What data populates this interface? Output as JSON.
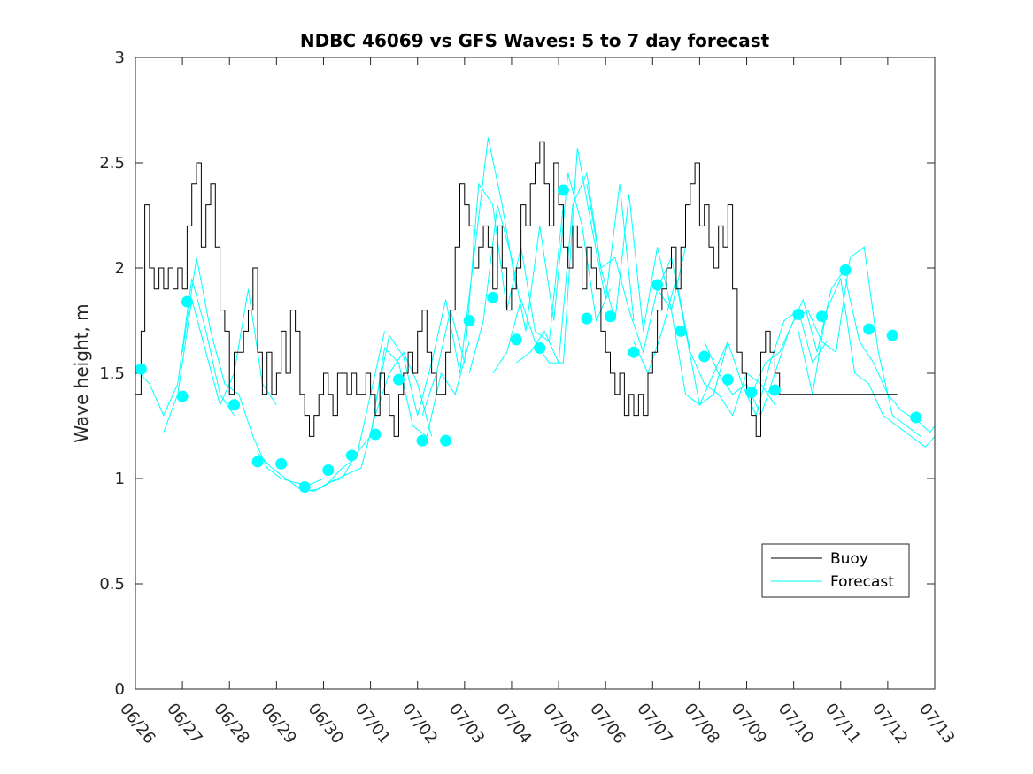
{
  "chart_data": {
    "type": "line",
    "title": "NDBC 46069 vs GFS Waves: 5 to 7 day forecast",
    "ylabel": "Wave height, m",
    "xlabel": "",
    "ylim": [
      0,
      3
    ],
    "yticks": [
      "0",
      "0.5",
      "1",
      "1.5",
      "2",
      "2.5",
      "3"
    ],
    "xticks": [
      "06/26",
      "06/27",
      "06/28",
      "06/29",
      "06/30",
      "07/01",
      "07/02",
      "07/03",
      "07/04",
      "07/05",
      "07/06",
      "07/07",
      "07/08",
      "07/09",
      "07/10",
      "07/11",
      "07/12",
      "07/13"
    ],
    "x_unit": "days since 06/26",
    "legend": {
      "position": "lower-right",
      "entries": [
        "Buoy",
        "Forecast"
      ]
    },
    "colors": {
      "buoy": "#000000",
      "forecast": "#00ffff",
      "axes": "#262626"
    },
    "buoy": {
      "name": "Buoy",
      "x": [
        0,
        0.12,
        0.2,
        0.3,
        0.4,
        0.5,
        0.6,
        0.7,
        0.8,
        0.9,
        1.0,
        1.1,
        1.2,
        1.3,
        1.4,
        1.5,
        1.6,
        1.7,
        1.8,
        1.9,
        2.0,
        2.1,
        2.2,
        2.3,
        2.4,
        2.5,
        2.6,
        2.7,
        2.8,
        2.9,
        3.0,
        3.1,
        3.2,
        3.3,
        3.4,
        3.5,
        3.6,
        3.7,
        3.8,
        3.9,
        4.0,
        4.1,
        4.2,
        4.3,
        4.4,
        4.5,
        4.6,
        4.7,
        4.8,
        4.9,
        5.0,
        5.1,
        5.2,
        5.3,
        5.4,
        5.5,
        5.6,
        5.7,
        5.8,
        5.9,
        6.0,
        6.1,
        6.2,
        6.3,
        6.4,
        6.5,
        6.6,
        6.7,
        6.8,
        6.9,
        7.0,
        7.1,
        7.2,
        7.3,
        7.4,
        7.5,
        7.6,
        7.7,
        7.8,
        7.9,
        8.0,
        8.1,
        8.2,
        8.3,
        8.4,
        8.5,
        8.6,
        8.7,
        8.8,
        8.9,
        9.0,
        9.1,
        9.2,
        9.3,
        9.4,
        9.5,
        9.6,
        9.7,
        9.8,
        9.9,
        10.0,
        10.1,
        10.2,
        10.3,
        10.4,
        10.5,
        10.6,
        10.7,
        10.8,
        10.9,
        11.0,
        11.1,
        11.2,
        11.3,
        11.4,
        11.5,
        11.6,
        11.7,
        11.8,
        11.9,
        12.0,
        12.1,
        12.2,
        12.3,
        12.4,
        12.5,
        12.6,
        12.7,
        12.8,
        12.9,
        13.0,
        13.1,
        13.2,
        13.3,
        13.4,
        13.5,
        13.6,
        13.7,
        13.8,
        13.9,
        14.0,
        14.1,
        14.2,
        14.3,
        14.4,
        14.5,
        14.6,
        14.7,
        14.8,
        14.9,
        15.0,
        15.1,
        15.2,
        15.3,
        15.4,
        15.5,
        15.6,
        15.7,
        15.8,
        15.9,
        16.0,
        16.1,
        16.2
      ],
      "y": [
        1.4,
        1.7,
        2.3,
        2.0,
        1.9,
        2.0,
        1.9,
        2.0,
        1.9,
        2.0,
        1.9,
        2.2,
        2.4,
        2.5,
        2.1,
        2.3,
        2.4,
        2.1,
        1.8,
        1.7,
        1.4,
        1.6,
        1.6,
        1.7,
        1.8,
        2.0,
        1.6,
        1.4,
        1.6,
        1.4,
        1.5,
        1.7,
        1.5,
        1.8,
        1.7,
        1.4,
        1.3,
        1.2,
        1.3,
        1.4,
        1.5,
        1.4,
        1.3,
        1.5,
        1.5,
        1.4,
        1.5,
        1.4,
        1.4,
        1.5,
        1.4,
        1.3,
        1.5,
        1.4,
        1.3,
        1.2,
        1.4,
        1.5,
        1.6,
        1.5,
        1.7,
        1.8,
        1.6,
        1.5,
        1.4,
        1.4,
        1.6,
        1.8,
        2.1,
        2.4,
        2.3,
        2.2,
        2.0,
        2.1,
        2.2,
        2.1,
        1.9,
        2.2,
        2.0,
        1.8,
        1.9,
        2.0,
        2.3,
        2.2,
        2.4,
        2.5,
        2.6,
        2.4,
        2.2,
        2.5,
        2.3,
        2.1,
        2.0,
        2.2,
        2.1,
        1.9,
        2.1,
        2.0,
        1.9,
        1.7,
        1.6,
        1.5,
        1.4,
        1.5,
        1.3,
        1.4,
        1.3,
        1.4,
        1.3,
        1.5,
        1.6,
        1.8,
        1.9,
        2.0,
        2.1,
        1.9,
        2.1,
        2.3,
        2.4,
        2.5,
        2.2,
        2.3,
        2.1,
        2.0,
        2.2,
        2.1,
        2.3,
        1.9,
        1.6,
        1.5,
        1.4,
        1.3,
        1.2,
        1.6,
        1.7,
        1.6,
        1.5,
        1.4,
        1.4,
        1.4,
        1.4,
        1.4,
        1.4,
        1.4,
        1.4,
        1.4,
        1.4,
        1.4,
        1.4,
        1.4,
        1.4,
        1.4,
        1.4,
        1.4,
        1.4,
        1.4,
        1.4,
        1.4,
        1.4,
        1.4,
        1.4,
        1.4,
        1.4
      ]
    },
    "forecast_runs": [
      {
        "name": "Forecast",
        "x": [
          0,
          0.3,
          0.6,
          0.9,
          1.2,
          1.5,
          1.8,
          2.1
        ],
        "y": [
          1.52,
          1.45,
          1.3,
          1.45,
          1.95,
          1.7,
          1.4,
          1.3
        ]
      },
      {
        "name": "Forecast",
        "x": [
          0.6,
          0.9,
          1.2,
          1.5,
          1.8,
          2.1,
          2.4,
          2.7,
          3.0
        ],
        "y": [
          1.22,
          1.4,
          1.85,
          1.6,
          1.35,
          1.5,
          1.9,
          1.45,
          1.35
        ]
      },
      {
        "name": "Forecast",
        "x": [
          1.0,
          1.3,
          1.6,
          1.9,
          2.2,
          2.5,
          2.8,
          3.1,
          3.4,
          3.7,
          4.0
        ],
        "y": [
          1.6,
          2.05,
          1.7,
          1.45,
          1.4,
          1.2,
          1.05,
          1.0,
          0.98,
          0.97,
          1.0
        ]
      },
      {
        "name": "Forecast",
        "x": [
          2.6,
          2.9,
          3.2,
          3.5,
          3.8,
          4.1,
          4.4,
          4.7,
          5.0,
          5.3
        ],
        "y": [
          1.12,
          1.05,
          1.0,
          0.95,
          0.94,
          0.98,
          1.05,
          1.1,
          1.4,
          1.7
        ]
      },
      {
        "name": "Forecast",
        "x": [
          3.6,
          3.9,
          4.2,
          4.5,
          4.8,
          5.1,
          5.4,
          5.7,
          6.0,
          6.3
        ],
        "y": [
          0.94,
          0.95,
          0.99,
          1.02,
          1.05,
          1.3,
          1.5,
          1.6,
          1.45,
          1.2
        ]
      },
      {
        "name": "Forecast",
        "x": [
          4.1,
          4.4,
          4.7,
          5.0,
          5.3,
          5.6,
          5.9,
          6.2,
          6.5,
          6.8,
          7.1
        ],
        "y": [
          0.98,
          1.0,
          1.12,
          1.2,
          1.62,
          1.55,
          1.25,
          1.2,
          1.5,
          1.4,
          1.65
        ]
      },
      {
        "name": "Forecast",
        "x": [
          5.1,
          5.4,
          5.7,
          6.0,
          6.3,
          6.6,
          6.9,
          7.2,
          7.5,
          7.8,
          8.1
        ],
        "y": [
          1.35,
          1.68,
          1.58,
          1.3,
          1.55,
          1.85,
          1.5,
          2.05,
          2.62,
          2.3,
          1.9
        ]
      },
      {
        "name": "Forecast",
        "x": [
          6.1,
          6.4,
          6.7,
          7.0,
          7.3,
          7.6,
          7.9,
          8.2,
          8.5,
          8.8,
          9.1
        ],
        "y": [
          1.3,
          1.5,
          1.8,
          1.55,
          2.4,
          2.3,
          1.8,
          2.1,
          1.7,
          1.65,
          2.3
        ]
      },
      {
        "name": "Forecast",
        "x": [
          7.1,
          7.4,
          7.7,
          8.0,
          8.3,
          8.6,
          8.9,
          9.2,
          9.5,
          9.8,
          10.1
        ],
        "y": [
          1.5,
          1.75,
          2.3,
          2.05,
          1.7,
          2.2,
          1.75,
          2.45,
          2.2,
          1.75,
          1.9
        ]
      },
      {
        "name": "Forecast",
        "x": [
          7.6,
          7.9,
          8.2,
          8.5,
          8.8,
          9.1,
          9.4,
          9.7,
          10.0,
          10.3,
          10.6
        ],
        "y": [
          1.5,
          1.6,
          1.85,
          1.65,
          1.55,
          1.55,
          2.57,
          2.2,
          1.85,
          2.4,
          1.75
        ]
      },
      {
        "name": "Forecast",
        "x": [
          8.1,
          8.4,
          8.7,
          9.0,
          9.3,
          9.6,
          9.9,
          10.2,
          10.5,
          10.8,
          11.1,
          11.4,
          11.7
        ],
        "y": [
          1.55,
          1.6,
          1.7,
          1.55,
          2.3,
          2.45,
          2.0,
          1.75,
          2.35,
          1.7,
          2.1,
          1.8,
          2.1
        ]
      },
      {
        "name": "Forecast",
        "x": [
          9.6,
          9.9,
          10.2,
          10.5,
          10.8,
          11.1,
          11.4,
          11.7,
          12.0,
          12.3,
          12.6
        ],
        "y": [
          2.4,
          2.0,
          2.05,
          1.8,
          1.6,
          1.9,
          2.05,
          1.7,
          1.35,
          1.5,
          1.65
        ]
      },
      {
        "name": "Forecast",
        "x": [
          10.6,
          10.9,
          11.2,
          11.5,
          11.8,
          12.1,
          12.4,
          12.7,
          13.0,
          13.3,
          13.6
        ],
        "y": [
          1.65,
          1.5,
          1.7,
          1.95,
          1.6,
          1.45,
          1.4,
          1.3,
          1.5,
          1.45,
          1.35
        ]
      },
      {
        "name": "Forecast",
        "x": [
          11.1,
          11.4,
          11.7,
          12.0,
          12.3,
          12.6,
          12.9,
          13.2,
          13.5,
          13.8,
          14.1,
          14.4,
          14.7
        ],
        "y": [
          1.9,
          1.8,
          1.4,
          1.35,
          1.4,
          1.65,
          1.45,
          1.3,
          1.55,
          1.75,
          1.8,
          1.55,
          1.65
        ]
      },
      {
        "name": "Forecast",
        "x": [
          12.1,
          12.4,
          12.7,
          13.0,
          13.3,
          13.6,
          13.9,
          14.2,
          14.5,
          14.8,
          15.1
        ],
        "y": [
          1.65,
          1.5,
          1.4,
          1.45,
          1.3,
          1.5,
          1.7,
          1.85,
          1.6,
          1.9,
          2.0
        ]
      },
      {
        "name": "Forecast",
        "x": [
          13.1,
          13.4,
          13.7,
          14.0,
          14.3,
          14.6,
          14.9,
          15.2,
          15.5,
          15.8,
          16.1,
          16.4,
          16.7
        ],
        "y": [
          1.4,
          1.55,
          1.6,
          1.75,
          1.8,
          1.65,
          1.6,
          2.05,
          2.1,
          1.6,
          1.3,
          1.25,
          1.2
        ]
      },
      {
        "name": "Forecast",
        "x": [
          14.1,
          14.4,
          14.7,
          15.0,
          15.3,
          15.6,
          15.9,
          16.2,
          16.5,
          16.8,
          17.0
        ],
        "y": [
          1.7,
          1.4,
          1.8,
          1.95,
          1.5,
          1.45,
          1.3,
          1.25,
          1.2,
          1.15,
          1.2
        ]
      },
      {
        "name": "Forecast",
        "x": [
          15.1,
          15.4,
          15.7,
          16.0,
          16.3,
          16.6,
          16.9,
          17.0
        ],
        "y": [
          1.95,
          1.65,
          1.55,
          1.4,
          1.32,
          1.28,
          1.22,
          1.25
        ]
      }
    ],
    "forecast_markers": {
      "name": "Forecast",
      "x": [
        0.12,
        1.0,
        1.1,
        2.1,
        2.6,
        3.1,
        3.6,
        4.1,
        4.6,
        5.1,
        5.6,
        6.1,
        6.6,
        7.1,
        7.6,
        8.1,
        8.6,
        9.1,
        9.6,
        10.1,
        10.6,
        11.1,
        11.6,
        12.1,
        12.6,
        13.1,
        13.6,
        14.1,
        14.6,
        15.1,
        15.6,
        16.1,
        16.6
      ],
      "y": [
        1.52,
        1.39,
        1.84,
        1.35,
        1.08,
        1.07,
        0.96,
        1.04,
        1.11,
        1.21,
        1.47,
        1.18,
        1.18,
        1.75,
        1.86,
        1.66,
        1.62,
        2.37,
        1.76,
        1.77,
        1.6,
        1.92,
        1.7,
        1.58,
        1.47,
        1.41,
        1.42,
        1.78,
        1.77,
        1.99,
        1.71,
        1.68,
        1.29
      ]
    }
  }
}
